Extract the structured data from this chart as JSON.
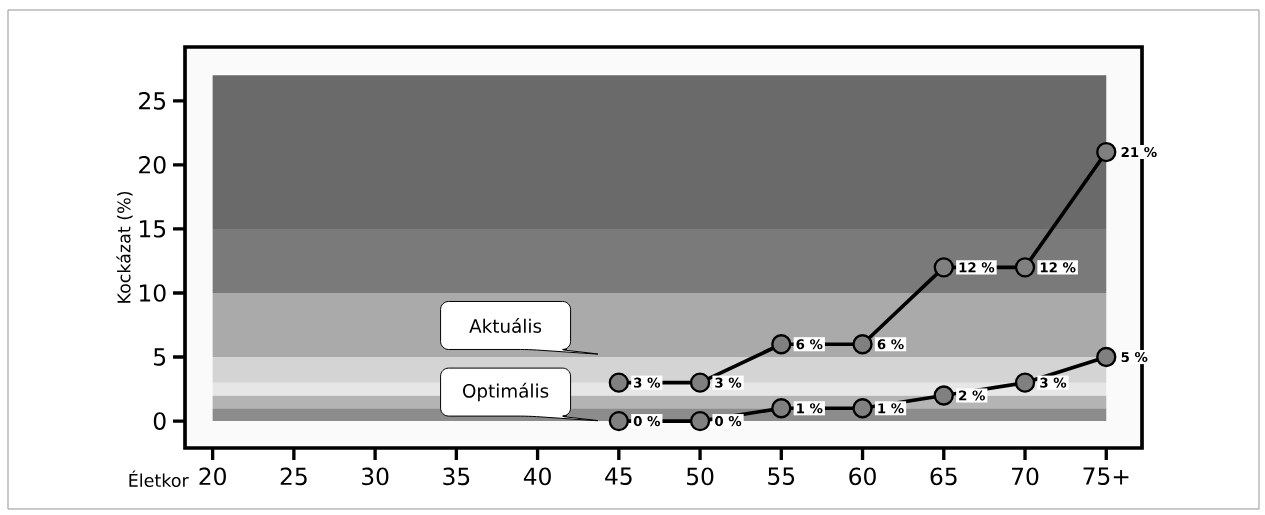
{
  "chart_data": {
    "type": "line",
    "ylabel": "Kockázat (%)",
    "xlabel": "Életkor",
    "categories": [
      "20",
      "25",
      "30",
      "35",
      "40",
      "45",
      "50",
      "55",
      "60",
      "65",
      "70",
      "75+"
    ],
    "ylim": [
      -2.1,
      29.2
    ],
    "yticks": [
      0,
      5,
      10,
      15,
      20,
      25
    ],
    "marker": "circle",
    "series": [
      {
        "name": "Aktuális",
        "color": "#000000",
        "values": [
          null,
          null,
          null,
          null,
          null,
          3,
          3,
          6,
          6,
          12,
          12,
          21
        ],
        "value_labels": [
          null,
          null,
          null,
          null,
          null,
          "3 %",
          "3 %",
          "6 %",
          "6 %",
          "12 %",
          "12 %",
          "21 %"
        ]
      },
      {
        "name": "Optimális",
        "color": "#000000",
        "values": [
          null,
          null,
          null,
          null,
          null,
          0,
          0,
          1,
          1,
          2,
          3,
          5
        ],
        "value_labels": [
          null,
          null,
          null,
          null,
          null,
          "0 %",
          "0 %",
          "1 %",
          "1 %",
          "2 %",
          "3 %",
          "5 %"
        ]
      }
    ],
    "bands": [
      {
        "axis": "y",
        "from": 0,
        "to": 1,
        "color": "#8c8c8c"
      },
      {
        "axis": "y",
        "from": 1,
        "to": 2,
        "color": "#b4b4b4"
      },
      {
        "axis": "y",
        "from": 2,
        "to": 3,
        "color": "#e6e6e6"
      },
      {
        "axis": "y",
        "from": 3,
        "to": 5,
        "color": "#d4d4d4"
      },
      {
        "axis": "y",
        "from": 5,
        "to": 10,
        "color": "#aaaaaa"
      },
      {
        "axis": "y",
        "from": 10,
        "to": 15,
        "color": "#7a7a7a"
      },
      {
        "axis": "y",
        "from": 15,
        "to": 27,
        "color": "#6a6a6a"
      }
    ]
  }
}
